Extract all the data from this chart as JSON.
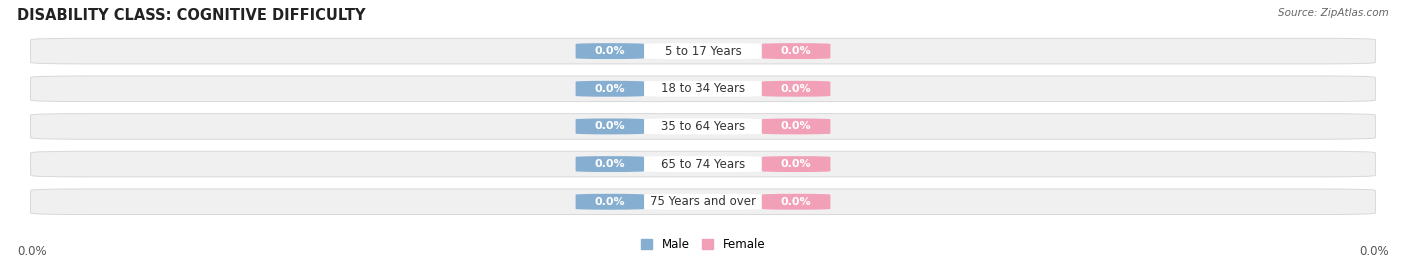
{
  "title": "DISABILITY CLASS: COGNITIVE DIFFICULTY",
  "source": "Source: ZipAtlas.com",
  "categories": [
    "5 to 17 Years",
    "18 to 34 Years",
    "35 to 64 Years",
    "65 to 74 Years",
    "75 Years and over"
  ],
  "male_values": [
    0.0,
    0.0,
    0.0,
    0.0,
    0.0
  ],
  "female_values": [
    0.0,
    0.0,
    0.0,
    0.0,
    0.0
  ],
  "male_color": "#85aed0",
  "female_color": "#f2a0b8",
  "male_label": "Male",
  "female_label": "Female",
  "row_bg_color": "#f0f0f0",
  "row_edge_color": "#d8d8d8",
  "white_label_bg": "#ffffff",
  "xlim_left": "0.0%",
  "xlim_right": "0.0%",
  "title_fontsize": 10.5,
  "value_fontsize": 8.0,
  "category_fontsize": 8.5,
  "source_fontsize": 7.5,
  "tick_fontsize": 8.5,
  "value_label_color": "#ffffff",
  "pill_value": "0.0%"
}
